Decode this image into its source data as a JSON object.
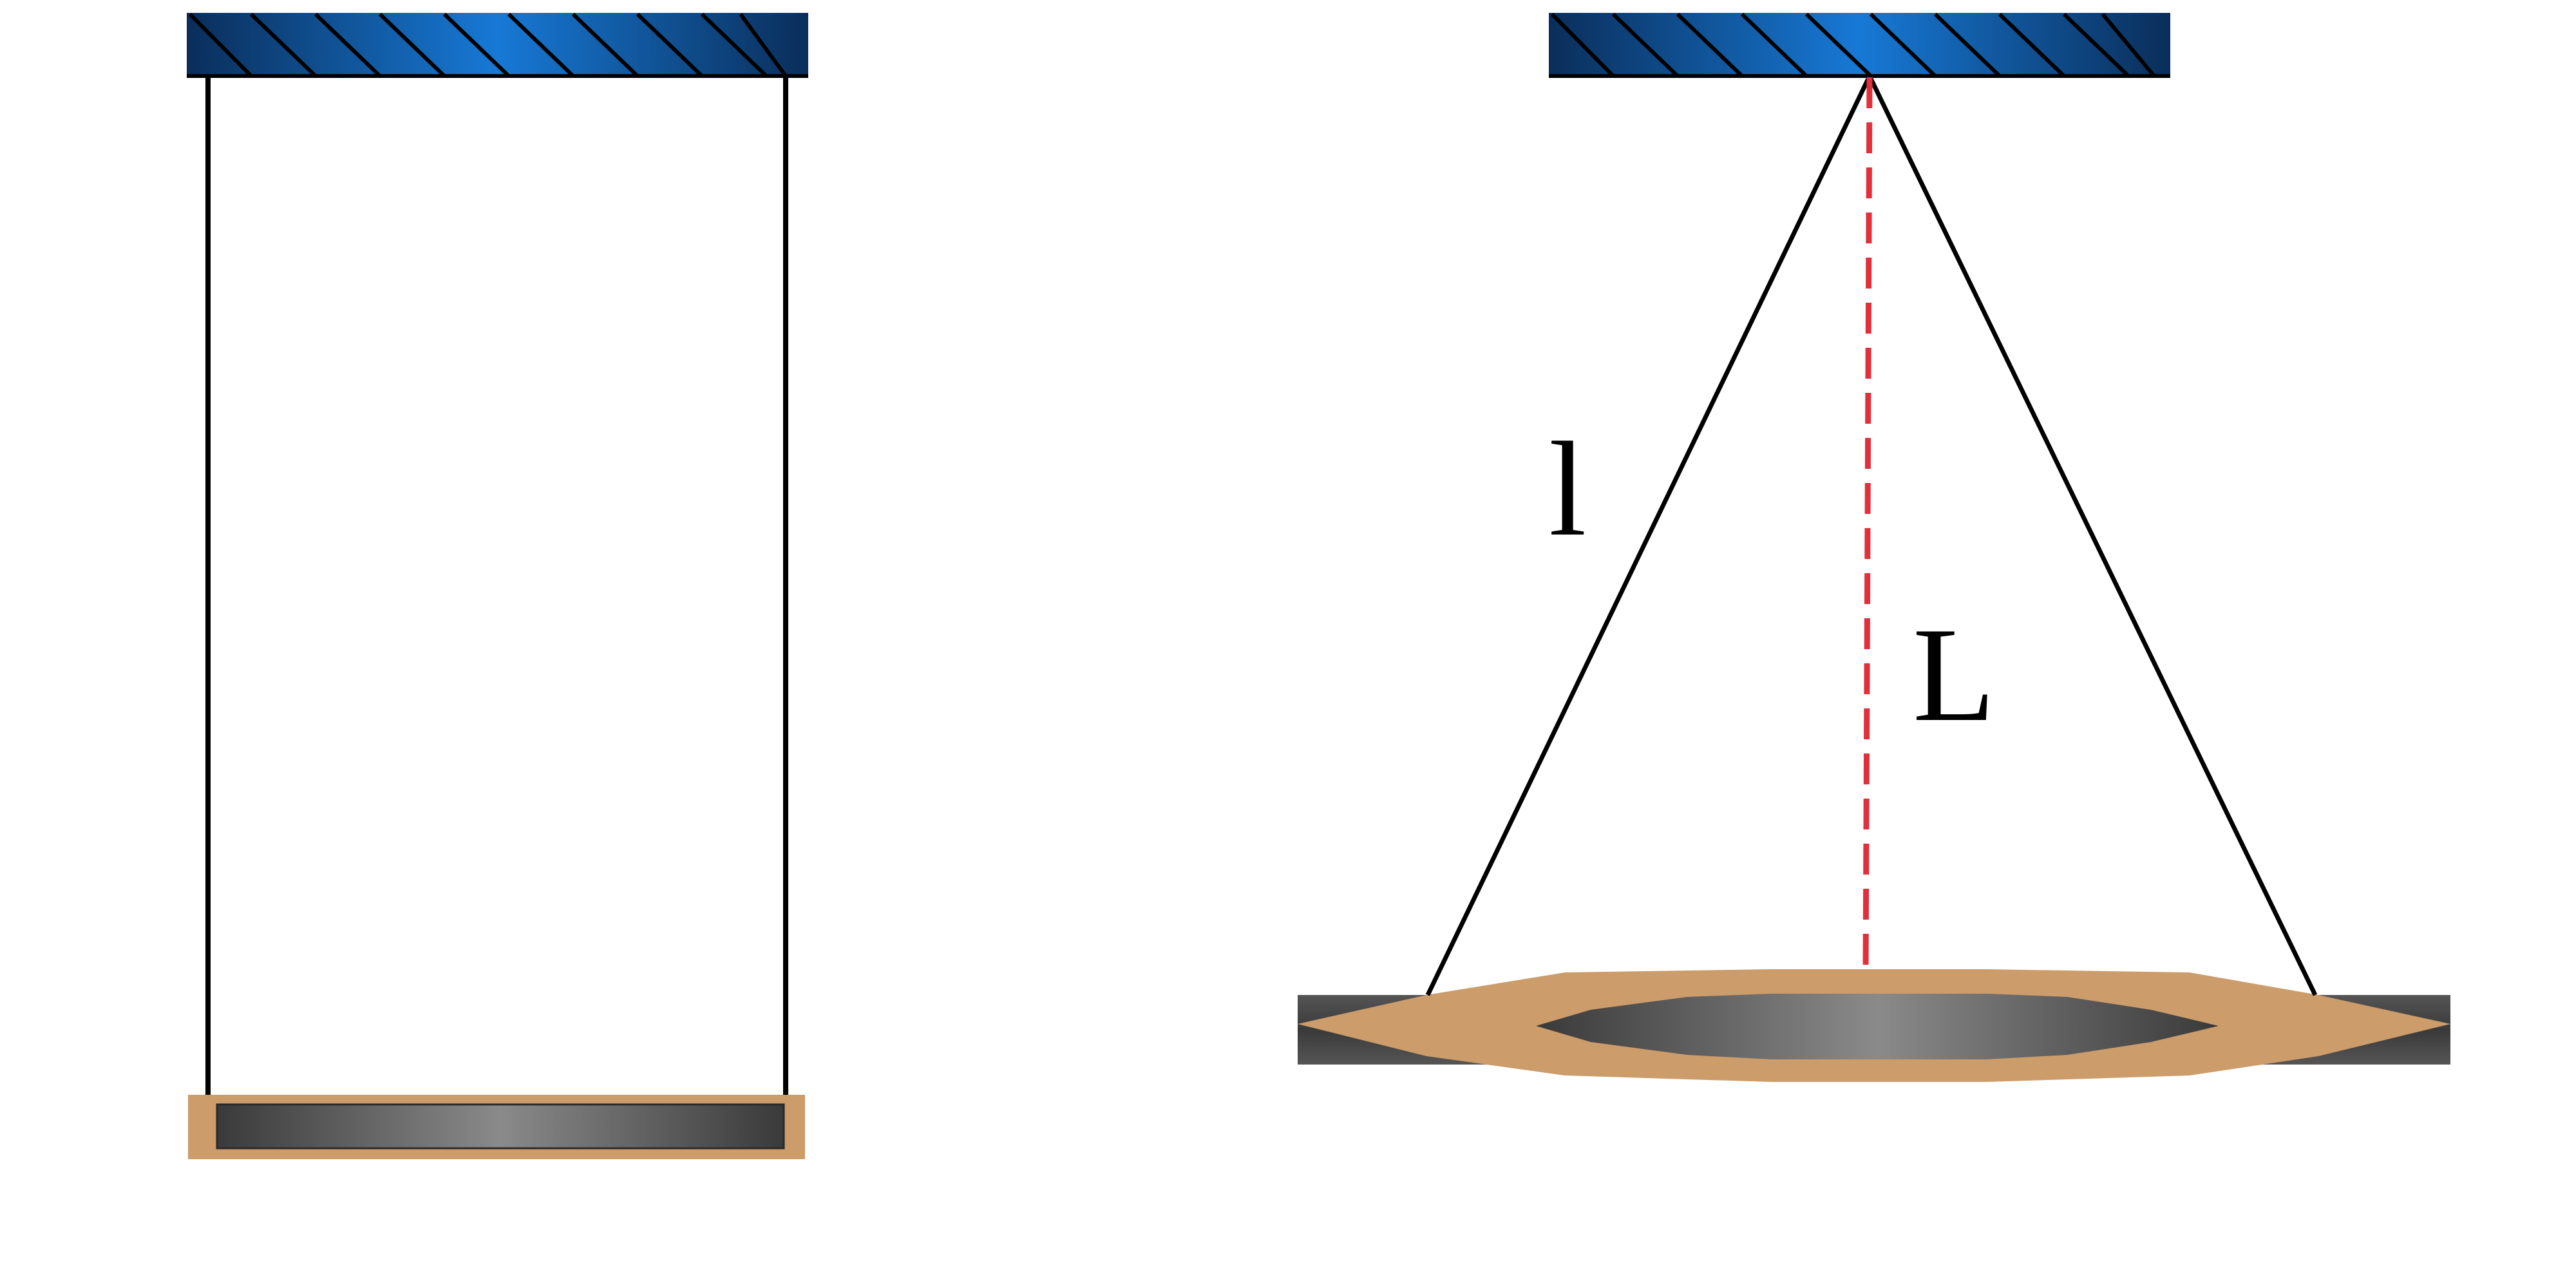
{
  "labels": {
    "string_length": "l",
    "vertical_height": "L"
  },
  "colors": {
    "ceiling_dark": "#0a2e5a",
    "ceiling_light": "#1779d6",
    "frame_tan": "#cc9c6b",
    "plate_dark": "#3a3a3a",
    "plate_light": "#8a8a8a",
    "string": "#000000",
    "dashed_line": "#e0303c"
  }
}
